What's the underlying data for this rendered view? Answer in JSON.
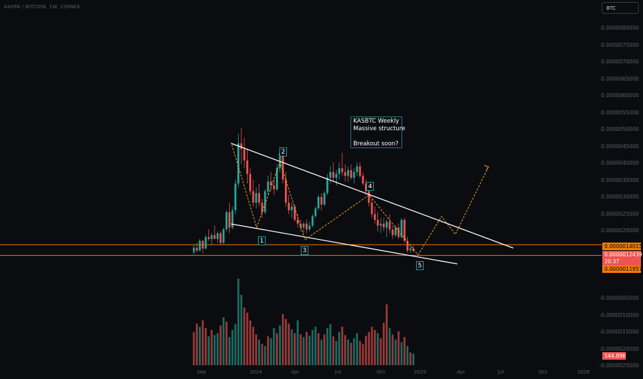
{
  "header": {
    "symbol": "KASPA / BITCOIN, 1W, COINEX",
    "currency": "BTC"
  },
  "annotation": {
    "lines": [
      "KASBTC Weekly",
      "Massive structure",
      "",
      "Breakout soon?"
    ]
  },
  "wave_labels": [
    "1",
    "2",
    "3",
    "4",
    "5"
  ],
  "price_axis": {
    "ticks": [
      "0.0000080000",
      "0.0000075000",
      "0.0000070000",
      "0.0000065000",
      "0.0000060000",
      "0.0000055000",
      "0.0000050000",
      "0.0000045000",
      "0.0000040000",
      "0.0000035000",
      "0.0000030000",
      "0.0000025000",
      "0.0000020000",
      "-0.0000005000",
      "-0.0000010000",
      "-0.0000015000",
      "-0.0000020000",
      "-0.0000025000",
      "-0.0000030000"
    ],
    "price_badges": {
      "upper": "0.0000014015",
      "current": "0.0000012439",
      "countdown": "20:37",
      "lower": "0.0000011957"
    },
    "volume_badge": "544.89K"
  },
  "time_axis": {
    "labels": [
      "Sep",
      "2024",
      "Apr",
      "Jul",
      "Oct",
      "2025",
      "Apr",
      "Jul",
      "Oct",
      "2026"
    ]
  },
  "colors": {
    "up": "#26a69a",
    "down": "#ef5350",
    "vol_up": "#1b6b63",
    "vol_down": "#9b3a38",
    "trendline": "#ffffff",
    "path": "#f5a623",
    "hline": "#f57c00",
    "wave_border": "#1f9aa8"
  },
  "chart_data": {
    "type": "candlestick",
    "interval": "1W",
    "candles": [
      [
        1.2,
        1.4,
        1.15,
        1.32
      ],
      [
        1.32,
        1.45,
        1.2,
        1.25
      ],
      [
        1.25,
        1.55,
        1.22,
        1.5
      ],
      [
        1.5,
        1.52,
        1.18,
        1.3
      ],
      [
        1.3,
        1.65,
        1.28,
        1.6
      ],
      [
        1.6,
        1.8,
        1.5,
        1.55
      ],
      [
        1.55,
        1.7,
        1.4,
        1.65
      ],
      [
        1.65,
        1.9,
        1.55,
        1.55
      ],
      [
        1.55,
        1.75,
        1.45,
        1.7
      ],
      [
        1.7,
        1.75,
        1.4,
        1.45
      ],
      [
        1.45,
        1.85,
        1.4,
        1.8
      ],
      [
        1.8,
        2.3,
        1.75,
        2.25
      ],
      [
        2.25,
        2.5,
        1.7,
        1.85
      ],
      [
        1.85,
        2.4,
        1.8,
        2.3
      ],
      [
        2.3,
        3.1,
        2.2,
        3.0
      ],
      [
        3.0,
        4.3,
        2.9,
        4.05
      ],
      [
        4.05,
        4.45,
        3.5,
        3.9
      ],
      [
        3.9,
        4.2,
        3.4,
        3.6
      ],
      [
        3.6,
        3.9,
        3.0,
        3.25
      ],
      [
        3.25,
        3.4,
        2.7,
        2.8
      ],
      [
        2.8,
        3.1,
        2.4,
        2.5
      ],
      [
        2.5,
        2.9,
        2.35,
        2.75
      ],
      [
        2.75,
        3.0,
        2.4,
        2.5
      ],
      [
        2.5,
        2.6,
        2.1,
        2.25
      ],
      [
        2.25,
        2.85,
        2.2,
        2.8
      ],
      [
        2.8,
        3.2,
        2.7,
        3.05
      ],
      [
        3.05,
        3.3,
        2.8,
        2.95
      ],
      [
        2.95,
        3.1,
        2.7,
        2.85
      ],
      [
        2.85,
        3.5,
        2.8,
        3.4
      ],
      [
        3.4,
        3.95,
        3.3,
        3.8
      ],
      [
        3.8,
        3.9,
        3.0,
        3.1
      ],
      [
        3.1,
        3.3,
        2.4,
        2.5
      ],
      [
        2.5,
        2.7,
        2.2,
        2.3
      ],
      [
        2.3,
        2.5,
        2.1,
        2.4
      ],
      [
        2.4,
        2.45,
        2.0,
        2.05
      ],
      [
        2.05,
        2.2,
        1.85,
        1.95
      ],
      [
        1.95,
        2.05,
        1.75,
        1.85
      ],
      [
        1.85,
        2.0,
        1.7,
        1.95
      ],
      [
        1.95,
        2.05,
        1.7,
        1.8
      ],
      [
        1.8,
        2.0,
        1.75,
        1.9
      ],
      [
        1.9,
        2.2,
        1.85,
        2.15
      ],
      [
        2.15,
        2.4,
        2.1,
        2.35
      ],
      [
        2.35,
        2.7,
        2.3,
        2.65
      ],
      [
        2.65,
        2.75,
        2.3,
        2.45
      ],
      [
        2.45,
        2.8,
        2.4,
        2.75
      ],
      [
        2.75,
        3.25,
        2.7,
        3.15
      ],
      [
        3.15,
        3.45,
        3.0,
        3.3
      ],
      [
        3.3,
        3.55,
        3.05,
        3.15
      ],
      [
        3.15,
        3.35,
        2.95,
        3.25
      ],
      [
        3.25,
        3.55,
        3.1,
        3.4
      ],
      [
        3.4,
        3.8,
        3.2,
        3.3
      ],
      [
        3.3,
        3.5,
        3.05,
        3.2
      ],
      [
        3.2,
        3.45,
        3.05,
        3.35
      ],
      [
        3.35,
        3.5,
        3.1,
        3.15
      ],
      [
        3.15,
        3.4,
        3.0,
        3.3
      ],
      [
        3.3,
        3.55,
        3.2,
        3.45
      ],
      [
        3.45,
        3.55,
        3.15,
        3.2
      ],
      [
        3.2,
        3.3,
        2.95,
        3.0
      ],
      [
        3.0,
        3.1,
        2.7,
        2.8
      ],
      [
        2.8,
        2.9,
        2.4,
        2.5
      ],
      [
        2.5,
        2.6,
        2.1,
        2.2
      ],
      [
        2.2,
        2.4,
        1.95,
        2.05
      ],
      [
        2.05,
        2.25,
        1.75,
        1.9
      ],
      [
        1.9,
        2.1,
        1.7,
        1.95
      ],
      [
        1.95,
        2.1,
        1.75,
        1.85
      ],
      [
        1.85,
        2.05,
        1.6,
        2.0
      ],
      [
        2.0,
        2.2,
        1.7,
        1.8
      ],
      [
        1.8,
        1.9,
        1.55,
        1.65
      ],
      [
        1.65,
        1.9,
        1.6,
        1.85
      ],
      [
        1.85,
        1.95,
        1.55,
        1.6
      ],
      [
        1.6,
        2.1,
        1.55,
        2.05
      ],
      [
        2.05,
        2.1,
        1.45,
        1.5
      ],
      [
        1.5,
        1.6,
        1.2,
        1.25
      ],
      [
        1.25,
        1.4,
        1.18,
        1.3
      ],
      [
        1.3,
        1.38,
        1.2,
        1.24
      ]
    ],
    "volume": [
      [
        52,
        "d"
      ],
      [
        65,
        "d"
      ],
      [
        60,
        "u"
      ],
      [
        70,
        "d"
      ],
      [
        58,
        "d"
      ],
      [
        45,
        "u"
      ],
      [
        55,
        "d"
      ],
      [
        47,
        "u"
      ],
      [
        50,
        "u"
      ],
      [
        62,
        "d"
      ],
      [
        75,
        "u"
      ],
      [
        68,
        "d"
      ],
      [
        44,
        "u"
      ],
      [
        55,
        "u"
      ],
      [
        64,
        "u"
      ],
      [
        135,
        "u"
      ],
      [
        110,
        "u"
      ],
      [
        90,
        "d"
      ],
      [
        82,
        "d"
      ],
      [
        70,
        "d"
      ],
      [
        60,
        "d"
      ],
      [
        48,
        "d"
      ],
      [
        40,
        "u"
      ],
      [
        33,
        "d"
      ],
      [
        30,
        "u"
      ],
      [
        45,
        "d"
      ],
      [
        42,
        "u"
      ],
      [
        58,
        "u"
      ],
      [
        50,
        "d"
      ],
      [
        62,
        "u"
      ],
      [
        80,
        "d"
      ],
      [
        72,
        "d"
      ],
      [
        65,
        "d"
      ],
      [
        56,
        "u"
      ],
      [
        50,
        "d"
      ],
      [
        70,
        "u"
      ],
      [
        48,
        "d"
      ],
      [
        44,
        "u"
      ],
      [
        52,
        "d"
      ],
      [
        46,
        "u"
      ],
      [
        55,
        "u"
      ],
      [
        60,
        "u"
      ],
      [
        50,
        "d"
      ],
      [
        40,
        "u"
      ],
      [
        48,
        "d"
      ],
      [
        58,
        "u"
      ],
      [
        64,
        "u"
      ],
      [
        45,
        "d"
      ],
      [
        38,
        "u"
      ],
      [
        52,
        "u"
      ],
      [
        60,
        "d"
      ],
      [
        47,
        "d"
      ],
      [
        40,
        "u"
      ],
      [
        35,
        "d"
      ],
      [
        42,
        "u"
      ],
      [
        50,
        "u"
      ],
      [
        38,
        "d"
      ],
      [
        33,
        "d"
      ],
      [
        46,
        "d"
      ],
      [
        52,
        "d"
      ],
      [
        60,
        "d"
      ],
      [
        55,
        "d"
      ],
      [
        50,
        "u"
      ],
      [
        42,
        "d"
      ],
      [
        66,
        "d"
      ],
      [
        95,
        "d"
      ],
      [
        58,
        "u"
      ],
      [
        48,
        "d"
      ],
      [
        40,
        "u"
      ],
      [
        53,
        "d"
      ],
      [
        36,
        "u"
      ],
      [
        44,
        "d"
      ],
      [
        30,
        "u"
      ],
      [
        20,
        "d"
      ],
      [
        18,
        "u"
      ]
    ],
    "trendlines": [
      {
        "name": "upper",
        "from": [
          "2024-01",
          4.45
        ],
        "to": [
          "2025-07",
          1.4
        ]
      },
      {
        "name": "lower",
        "from": [
          "2024-01",
          2.4
        ],
        "to": [
          "2025-02",
          1.15
        ]
      }
    ],
    "current_price": 1.2439e-06,
    "levels": [
      1.4015e-06,
      1.1957e-06
    ]
  }
}
